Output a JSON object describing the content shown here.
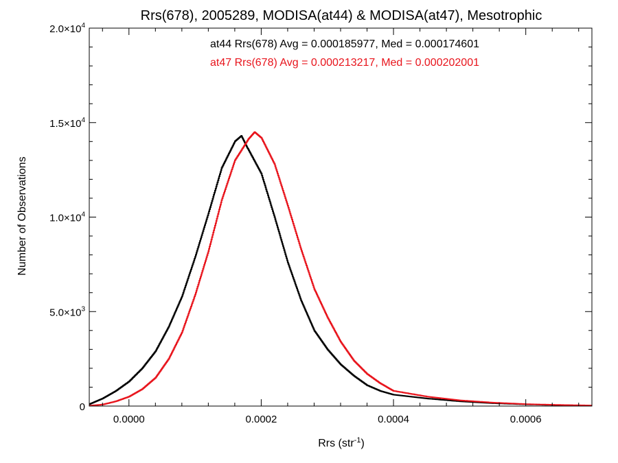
{
  "chart_data": {
    "type": "line",
    "step": true,
    "title": "Rrs(678), 2005289, MODISA(at44) & MODISA(at47), Mesotrophic",
    "xlabel_base": "Rrs (str",
    "xlabel_sup": "-1",
    "xlabel_close": ")",
    "ylabel": "Number of Observations",
    "xlim": [
      -6e-05,
      0.0007
    ],
    "ylim": [
      0,
      20000
    ],
    "grid": false,
    "x_ticks": [
      {
        "value": 0.0,
        "label": "0.0000"
      },
      {
        "value": 0.0002,
        "label": "0.0002"
      },
      {
        "value": 0.0004,
        "label": "0.0004"
      },
      {
        "value": 0.0006,
        "label": "0.0006"
      }
    ],
    "y_ticks": [
      {
        "value": 0,
        "base": "0",
        "exp": ""
      },
      {
        "value": 5000,
        "base": "5.0×10",
        "exp": "3"
      },
      {
        "value": 10000,
        "base": "1.0×10",
        "exp": "4"
      },
      {
        "value": 15000,
        "base": "1.5×10",
        "exp": "4"
      },
      {
        "value": 20000,
        "base": "2.0×10",
        "exp": "4"
      }
    ],
    "annotations": [
      {
        "text": "at44 Rrs(678) Avg = 0.000185977, Med = 0.000174601",
        "color": "#000000"
      },
      {
        "text": "at47 Rrs(678) Avg = 0.000213217, Med = 0.000202001",
        "color": "#e8141c"
      }
    ],
    "series": [
      {
        "color": "#000000",
        "x": [
          -6e-05,
          -4e-05,
          -2e-05,
          0.0,
          2e-05,
          4e-05,
          6e-05,
          8e-05,
          0.0001,
          0.00012,
          0.00014,
          0.00016,
          0.00017,
          0.00018,
          0.0002,
          0.00022,
          0.00024,
          0.00026,
          0.00028,
          0.0003,
          0.00032,
          0.00034,
          0.00036,
          0.00038,
          0.0004,
          0.00045,
          0.0005,
          0.00055,
          0.0006,
          0.00065,
          0.0007
        ],
        "y": [
          100,
          400,
          800,
          1300,
          2000,
          2900,
          4200,
          5800,
          7900,
          10200,
          12600,
          14000,
          14300,
          13600,
          12300,
          10000,
          7600,
          5600,
          4000,
          3000,
          2200,
          1600,
          1100,
          800,
          600,
          400,
          250,
          150,
          90,
          50,
          20
        ]
      },
      {
        "color": "#e8141c",
        "x": [
          -6e-05,
          -4e-05,
          -2e-05,
          0.0,
          2e-05,
          4e-05,
          6e-05,
          8e-05,
          0.0001,
          0.00012,
          0.00014,
          0.00016,
          0.00018,
          0.00019,
          0.0002,
          0.00022,
          0.00024,
          0.00026,
          0.00028,
          0.0003,
          0.00032,
          0.00034,
          0.00036,
          0.00038,
          0.0004,
          0.00045,
          0.0005,
          0.00055,
          0.0006,
          0.00065,
          0.0007
        ],
        "y": [
          20,
          80,
          250,
          500,
          900,
          1500,
          2500,
          3900,
          5900,
          8200,
          10900,
          13000,
          14100,
          14500,
          14200,
          12800,
          10600,
          8300,
          6200,
          4700,
          3400,
          2400,
          1700,
          1200,
          800,
          500,
          300,
          180,
          100,
          60,
          30
        ]
      }
    ]
  }
}
